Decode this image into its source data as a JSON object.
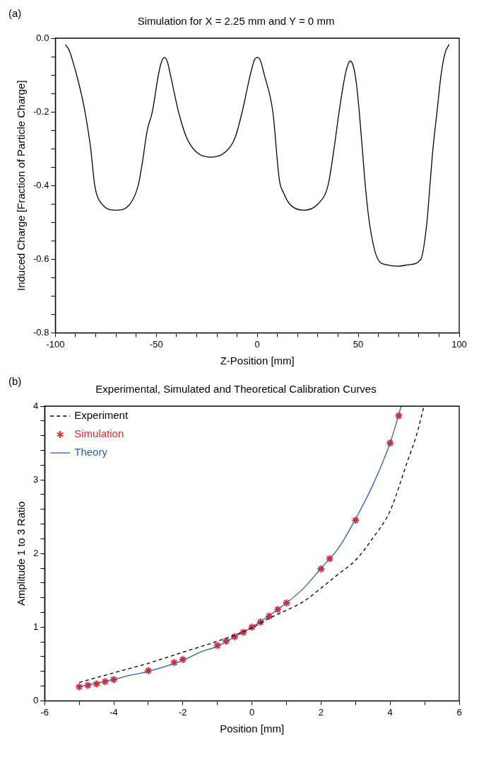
{
  "chart_data": [
    {
      "type": "line",
      "title": "Simulation for X = 2.25 mm and Y = 0 mm",
      "xlabel": "Z-Position [mm]",
      "ylabel": "Induced Charge [Fraction of Particle Charge]",
      "annotations": [
        "(a)"
      ],
      "xlim": [
        -100,
        100
      ],
      "xticks": [
        -100,
        {
          "value": -90,
          "label": null
        },
        {
          "value": -80,
          "label": null
        },
        {
          "value": -70,
          "label": null
        },
        {
          "value": -60,
          "label": null
        },
        -50,
        {
          "value": -40,
          "label": null
        },
        {
          "value": -30,
          "label": null
        },
        {
          "value": -20,
          "label": null
        },
        {
          "value": -10,
          "label": null
        },
        0,
        {
          "value": 10,
          "label": null
        },
        {
          "value": 20,
          "label": null
        },
        {
          "value": 30,
          "label": null
        },
        {
          "value": 40,
          "label": null
        },
        50,
        {
          "value": 60,
          "label": null
        },
        {
          "value": 70,
          "label": null
        },
        {
          "value": 80,
          "label": null
        },
        {
          "value": 90,
          "label": null
        },
        100
      ],
      "ylim": [
        -0.8,
        0
      ],
      "yticks": [
        -0.8,
        {
          "value": -0.75,
          "label": null
        },
        {
          "value": -0.7,
          "label": null
        },
        {
          "value": -0.65,
          "label": null
        },
        -0.6,
        {
          "value": -0.55,
          "label": null
        },
        {
          "value": -0.5,
          "label": null
        },
        {
          "value": -0.45,
          "label": null
        },
        -0.4,
        {
          "value": -0.35,
          "label": null
        },
        {
          "value": -0.3,
          "label": null
        },
        {
          "value": -0.25,
          "label": null
        },
        -0.2,
        {
          "value": -0.15,
          "label": null
        },
        {
          "value": -0.1,
          "label": null
        },
        {
          "value": -0.05,
          "label": null
        },
        {
          "value": 0,
          "label": "0.0"
        }
      ],
      "series": [
        {
          "type": "line",
          "color": "#000000",
          "line_style": "solid",
          "marker": "none",
          "x": [
            -95,
            -93,
            -91,
            -89,
            -87,
            -85,
            -82.5,
            -80.5,
            -77,
            -70,
            -63,
            -59,
            -57,
            -54.5,
            -52,
            -49,
            -47.5,
            -46,
            -44.5,
            -43,
            -39,
            -35,
            -30,
            -23,
            -16,
            -11,
            -7.5,
            -3.5,
            -1.5,
            0,
            1.5,
            3.5,
            7.7,
            10.9,
            13,
            16,
            23,
            30,
            35,
            38,
            40.5,
            43.5,
            45,
            46,
            47.5,
            49,
            50.5,
            52,
            53.5,
            55.5,
            59.7,
            64,
            69.5,
            75,
            81,
            84,
            85.5,
            87,
            89,
            91,
            93,
            95
          ],
          "values": [
            -0.017,
            -0.035,
            -0.07,
            -0.11,
            -0.155,
            -0.21,
            -0.3,
            -0.4,
            -0.45,
            -0.467,
            -0.45,
            -0.4,
            -0.34,
            -0.25,
            -0.2,
            -0.1,
            -0.065,
            -0.052,
            -0.065,
            -0.1,
            -0.2,
            -0.27,
            -0.31,
            -0.323,
            -0.31,
            -0.27,
            -0.2,
            -0.1,
            -0.06,
            -0.052,
            -0.06,
            -0.1,
            -0.2,
            -0.384,
            -0.42,
            -0.45,
            -0.467,
            -0.45,
            -0.4,
            -0.3,
            -0.2,
            -0.1,
            -0.07,
            -0.062,
            -0.075,
            -0.12,
            -0.2,
            -0.3,
            -0.4,
            -0.5,
            -0.6,
            -0.615,
            -0.619,
            -0.615,
            -0.6,
            -0.5,
            -0.4,
            -0.3,
            -0.2,
            -0.1,
            -0.04,
            -0.017
          ]
        }
      ]
    },
    {
      "type": "line",
      "title": "Experimental, Simulated and Theoretical Calibration Curves",
      "xlabel": "Position [mm]",
      "ylabel": "Amplitude 1 to 3 Ratio",
      "annotations": [
        "(b)"
      ],
      "legend": "top left",
      "xlim": [
        -6,
        6
      ],
      "xticks": [
        -6,
        {
          "value": -5,
          "label": null
        },
        -4,
        {
          "value": -3,
          "label": null
        },
        -2,
        {
          "value": -1,
          "label": null
        },
        0,
        {
          "value": 1,
          "label": null
        },
        2,
        {
          "value": 3,
          "label": null
        },
        4,
        {
          "value": 5,
          "label": null
        },
        6
      ],
      "ylim": [
        0,
        4
      ],
      "yticks": [
        0,
        {
          "value": 0.2,
          "label": null
        },
        {
          "value": 0.4,
          "label": null
        },
        {
          "value": 0.6,
          "label": null
        },
        {
          "value": 0.8,
          "label": null
        },
        1,
        {
          "value": 1.2,
          "label": null
        },
        {
          "value": 1.4,
          "label": null
        },
        {
          "value": 1.6,
          "label": null
        },
        {
          "value": 1.8,
          "label": null
        },
        2,
        {
          "value": 2.2,
          "label": null
        },
        {
          "value": 2.4,
          "label": null
        },
        {
          "value": 2.6,
          "label": null
        },
        {
          "value": 2.8,
          "label": null
        },
        3,
        {
          "value": 3.2,
          "label": null
        },
        {
          "value": 3.4,
          "label": null
        },
        {
          "value": 3.6,
          "label": null
        },
        {
          "value": 3.8,
          "label": null
        },
        4
      ],
      "series": [
        {
          "name": "Experiment",
          "type": "line",
          "color": "#000000",
          "line_style": "dashed",
          "marker": "none",
          "x": [
            -5,
            -4,
            -3,
            -2,
            -1,
            0,
            0.5,
            1,
            1.5,
            2,
            2.5,
            3,
            3.5,
            4,
            4.5,
            4.76,
            4.98
          ],
          "values": [
            0.25,
            0.38,
            0.51,
            0.66,
            0.81,
            0.99,
            1.12,
            1.23,
            1.35,
            1.53,
            1.72,
            1.91,
            2.21,
            2.58,
            3.25,
            3.6,
            4.0
          ]
        },
        {
          "name": "Simulation",
          "type": "scatter",
          "color": "#e8262b",
          "marker": "cross",
          "x": [
            -5,
            -4.75,
            -4.5,
            -4.25,
            -4,
            -3,
            -2.25,
            -2,
            -1,
            -0.75,
            -0.5,
            -0.25,
            0,
            0.25,
            0.5,
            0.75,
            1,
            2,
            2.25,
            3,
            4,
            4.25
          ],
          "values": [
            0.19,
            0.21,
            0.23,
            0.26,
            0.29,
            0.41,
            0.52,
            0.56,
            0.75,
            0.81,
            0.87,
            0.93,
            1.0,
            1.07,
            1.15,
            1.24,
            1.33,
            1.79,
            1.93,
            2.45,
            3.5,
            3.87
          ]
        },
        {
          "name": "Theory",
          "type": "line",
          "color": "#3060b8",
          "line_style": "solid",
          "marker": "none",
          "x": [
            -5,
            -4,
            -3.5,
            -3,
            -2,
            -1.5,
            -1,
            -0.5,
            0,
            1,
            1.5,
            2,
            2.5,
            3,
            3.5,
            4,
            4.32
          ],
          "values": [
            0.19,
            0.29,
            0.35,
            0.4,
            0.55,
            0.66,
            0.74,
            0.87,
            1.0,
            1.33,
            1.53,
            1.8,
            2.07,
            2.47,
            2.93,
            3.5,
            4.0
          ]
        }
      ]
    }
  ]
}
